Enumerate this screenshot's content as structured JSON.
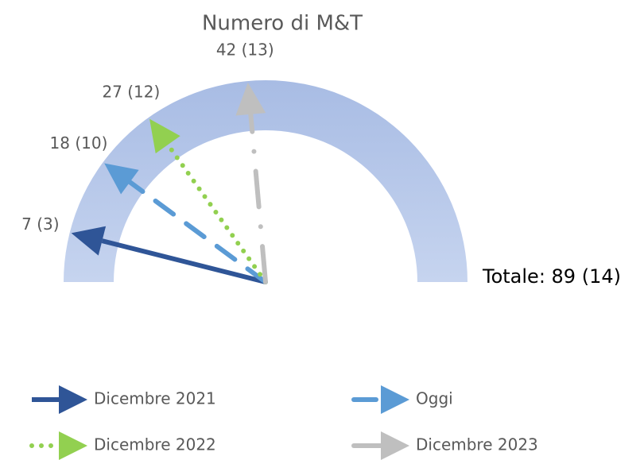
{
  "chart_data": {
    "type": "gauge",
    "title": "Numero di M&T",
    "total": 89,
    "total_label": "Totale: 89 (14)",
    "series": [
      {
        "name": "Dicembre 2021",
        "color": "#2f5597",
        "style": "solid",
        "values": [
          7
        ],
        "value_labels": [
          "7 (3)"
        ]
      },
      {
        "name": "Oggi",
        "color": "#5b9bd5",
        "style": "dashed",
        "values": [
          18
        ],
        "value_labels": [
          "18 (10)"
        ]
      },
      {
        "name": "Dicembre 2022",
        "color": "#92d050",
        "style": "dotted",
        "values": [
          27
        ],
        "value_labels": [
          "27 (12)"
        ]
      },
      {
        "name": "Dicembre 2023",
        "color": "#bfbfbf",
        "style": "dashdot",
        "values": [
          42
        ],
        "value_labels": [
          "42 (13)"
        ]
      }
    ],
    "gauge_color": "#aec2e6"
  }
}
